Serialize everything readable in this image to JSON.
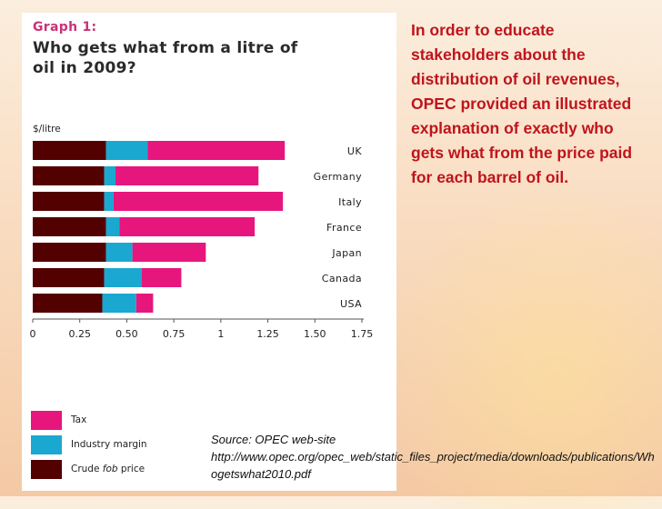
{
  "colors": {
    "crude": "#520000",
    "industry_margin": "#1ba8d0",
    "tax": "#e6167d",
    "graph_label": "#c8327a",
    "description_text": "#c0141c"
  },
  "chart_data": {
    "type": "bar",
    "orientation": "horizontal",
    "stacked": true,
    "graph_label": "Graph 1:",
    "title": "Who gets what from a litre of oil in 2009?",
    "ylabel": "$/litre",
    "xlim": [
      0,
      1.75
    ],
    "x_ticks": [
      "0",
      "0.25",
      "0.50",
      "0.75",
      "1",
      "1.25",
      "1.50",
      "1.75"
    ],
    "x_tick_values": [
      0,
      0.25,
      0.5,
      0.75,
      1,
      1.25,
      1.5,
      1.75
    ],
    "grid": false,
    "legend_position": "bottom-left",
    "categories": [
      "UK",
      "Germany",
      "Italy",
      "France",
      "Japan",
      "Canada",
      "USA"
    ],
    "series": [
      {
        "name": "Crude fob price",
        "color": "#520000",
        "values": [
          0.39,
          0.38,
          0.38,
          0.39,
          0.39,
          0.38,
          0.37
        ]
      },
      {
        "name": "Industry margin",
        "color": "#1ba8d0",
        "values": [
          0.22,
          0.06,
          0.05,
          0.07,
          0.14,
          0.2,
          0.18
        ]
      },
      {
        "name": "Tax",
        "color": "#e6167d",
        "values": [
          0.73,
          0.76,
          0.9,
          0.72,
          0.39,
          0.21,
          0.09
        ]
      }
    ]
  },
  "legend": {
    "items": [
      {
        "key": "tax",
        "label": "Tax"
      },
      {
        "key": "industry_margin",
        "label": "Industry margin"
      },
      {
        "key": "crude",
        "label_pre": "Crude ",
        "label_italic": "fob",
        "label_post": " price"
      }
    ]
  },
  "description": "In order to educate stakeholders about the distribution of oil revenues, OPEC provided an illustrated explanation of exactly who gets what from the price paid for each barrel of oil.",
  "source": {
    "line1": "Source: OPEC web-site",
    "url": "http://www.opec.org/opec_web/static_files_project/media/downloads/publications/Whogetswhat2010.pdf"
  }
}
